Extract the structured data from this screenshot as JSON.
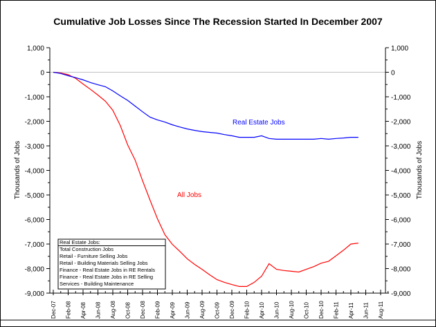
{
  "chart_data": {
    "type": "line",
    "title": "Cumulative Job Losses Since The Recession Started In December 2007",
    "ylabel": "Thousands of Jobs",
    "ylabel_right": "Thousands of Jobs",
    "ylim": [
      -9000,
      1000
    ],
    "yticks": [
      "1,000",
      "0",
      "-1,000",
      "-2,000",
      "-3,000",
      "-4,000",
      "-5,000",
      "-6,000",
      "-7,000",
      "-8,000",
      "-9,000"
    ],
    "xtick_labels": [
      "Dec-07",
      "Feb-08",
      "Apr-08",
      "Jun-08",
      "Aug-08",
      "Oct-08",
      "Dec-08",
      "Feb-09",
      "Apr-09",
      "Jun-09",
      "Aug-09",
      "Oct-09",
      "Dec-09",
      "Feb-10",
      "Apr-10",
      "Jun-10",
      "Aug-10",
      "Oct-10",
      "Dec-10",
      "Feb-11",
      "Apr-11",
      "Jun-11",
      "Aug-11"
    ],
    "grid": "zero line only",
    "x_start": "Dec-07",
    "x_frequency": "monthly",
    "series": [
      {
        "name": "All Jobs",
        "color": "#ff0000",
        "values": [
          0,
          -30,
          -100,
          -250,
          -480,
          -700,
          -930,
          -1180,
          -1550,
          -2170,
          -2960,
          -3580,
          -4420,
          -5210,
          -5970,
          -6620,
          -7010,
          -7300,
          -7600,
          -7830,
          -8030,
          -8250,
          -8450,
          -8560,
          -8650,
          -8730,
          -8730,
          -8560,
          -8310,
          -7800,
          -8030,
          -8080,
          -8110,
          -8140,
          -8030,
          -7920,
          -7780,
          -7700,
          -7480,
          -7250,
          -7000,
          -6960
        ]
      },
      {
        "name": "Real Estate Jobs",
        "color": "#0000ff",
        "values": [
          0,
          -50,
          -140,
          -220,
          -310,
          -420,
          -510,
          -590,
          -760,
          -960,
          -1150,
          -1380,
          -1610,
          -1830,
          -1940,
          -2030,
          -2140,
          -2230,
          -2310,
          -2370,
          -2420,
          -2450,
          -2480,
          -2540,
          -2590,
          -2650,
          -2650,
          -2650,
          -2590,
          -2700,
          -2730,
          -2730,
          -2730,
          -2730,
          -2730,
          -2730,
          -2700,
          -2730,
          -2700,
          -2680,
          -2650,
          -2650
        ]
      }
    ],
    "legend_box": {
      "title": "Real Estate Jobs:",
      "items": [
        "Total Construction Jobs",
        "Retail - Furniture Selling Jobs",
        "Retail - Building Materials Selling Jobs",
        "Finance - Real Estate Jobs in RE Rentals",
        "Finance - Real Estate Jobs in RE Selling",
        "Services - Building Maintenance"
      ],
      "placement": "bottom-left"
    }
  }
}
